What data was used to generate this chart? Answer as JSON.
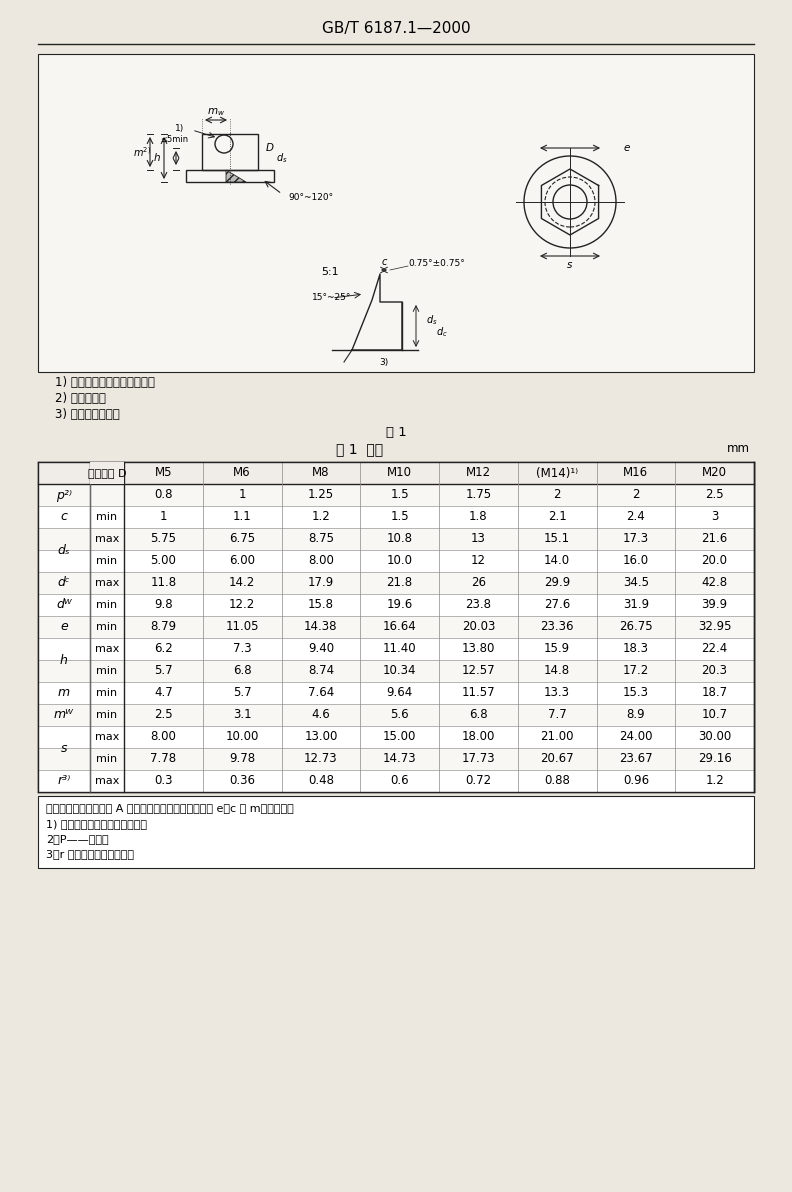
{
  "title": "GB/T 6187.1—2000",
  "fig_label": "图 1",
  "table_title": "表 1  尺寸",
  "unit_label": "mm",
  "notes_above_table": [
    "1) 有效力矩部分，形状任选。",
    "2) 螺纹长度。",
    "3) 棱边形状任选。"
  ],
  "notes_below_table": [
    "注：如产品通过了附录 A 的检验，则应视为满足了尺寸 e、c 和 m。的要求。",
    "1) 尽可能不采用括号内的规格。",
    "2）P——螺距。",
    "3）r 适用于棱角和六角面。"
  ],
  "col_headers": [
    "螺纹规格 D",
    "M5",
    "M6",
    "M8",
    "M10",
    "M12",
    "(M14)¹⁾",
    "M16",
    "M20"
  ],
  "row_data": [
    {
      "label": "p²⁾",
      "sub": "",
      "values": [
        "0.8",
        "1",
        "1.25",
        "1.5",
        "1.75",
        "2",
        "2",
        "2.5"
      ]
    },
    {
      "label": "c",
      "sub": "min",
      "values": [
        "1",
        "1.1",
        "1.2",
        "1.5",
        "1.8",
        "2.1",
        "2.4",
        "3"
      ]
    },
    {
      "label": "dₛ",
      "sub": "max",
      "values": [
        "5.75",
        "6.75",
        "8.75",
        "10.8",
        "13",
        "15.1",
        "17.3",
        "21.6"
      ]
    },
    {
      "label": "dₛ",
      "sub": "min",
      "values": [
        "5.00",
        "6.00",
        "8.00",
        "10.0",
        "12",
        "14.0",
        "16.0",
        "20.0"
      ]
    },
    {
      "label": "dᶜ",
      "sub": "max",
      "values": [
        "11.8",
        "14.2",
        "17.9",
        "21.8",
        "26",
        "29.9",
        "34.5",
        "42.8"
      ]
    },
    {
      "label": "dᵂ",
      "sub": "min",
      "values": [
        "9.8",
        "12.2",
        "15.8",
        "19.6",
        "23.8",
        "27.6",
        "31.9",
        "39.9"
      ]
    },
    {
      "label": "e",
      "sub": "min",
      "values": [
        "8.79",
        "11.05",
        "14.38",
        "16.64",
        "20.03",
        "23.36",
        "26.75",
        "32.95"
      ]
    },
    {
      "label": "h",
      "sub": "max",
      "values": [
        "6.2",
        "7.3",
        "9.40",
        "11.40",
        "13.80",
        "15.9",
        "18.3",
        "22.4"
      ]
    },
    {
      "label": "h",
      "sub": "min",
      "values": [
        "5.7",
        "6.8",
        "8.74",
        "10.34",
        "12.57",
        "14.8",
        "17.2",
        "20.3"
      ]
    },
    {
      "label": "m",
      "sub": "min",
      "values": [
        "4.7",
        "5.7",
        "7.64",
        "9.64",
        "11.57",
        "13.3",
        "15.3",
        "18.7"
      ]
    },
    {
      "label": "mᵂ",
      "sub": "min",
      "values": [
        "2.5",
        "3.1",
        "4.6",
        "5.6",
        "6.8",
        "7.7",
        "8.9",
        "10.7"
      ]
    },
    {
      "label": "s",
      "sub": "max",
      "values": [
        "8.00",
        "10.00",
        "13.00",
        "15.00",
        "18.00",
        "21.00",
        "24.00",
        "30.00"
      ]
    },
    {
      "label": "s",
      "sub": "min",
      "values": [
        "7.78",
        "9.78",
        "12.73",
        "14.73",
        "17.73",
        "20.67",
        "23.67",
        "29.16"
      ]
    },
    {
      "label": "r³⁾",
      "sub": "max",
      "values": [
        "0.3",
        "0.36",
        "0.48",
        "0.6",
        "0.72",
        "0.88",
        "0.96",
        "1.2"
      ]
    }
  ],
  "bg_color": "#ece8e0",
  "table_bg": "#ffffff",
  "line_color": "#222222"
}
